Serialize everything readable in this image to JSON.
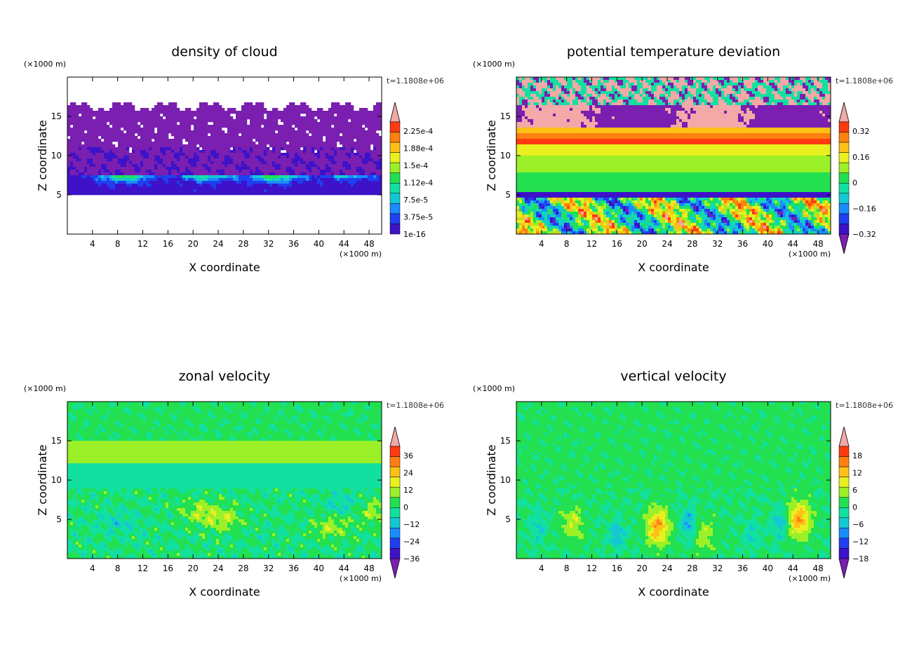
{
  "chart_data": [
    {
      "type": "heatmap",
      "title": "density of cloud",
      "xlabel": "X coordinate",
      "ylabel": "Z coordinate",
      "x_unit": "(×1000 m)",
      "y_unit": "(×1000 m)",
      "time_label": "t=1.1808e+06",
      "xlim": [
        0,
        50
      ],
      "ylim": [
        0,
        20
      ],
      "xticks": [
        4,
        8,
        12,
        16,
        20,
        24,
        28,
        32,
        36,
        40,
        44,
        48
      ],
      "yticks": [
        5,
        10,
        15
      ],
      "colorbar": {
        "labels": [
          "2.25e-4",
          "1.88e-4",
          "1.5e-4",
          "1.12e-4",
          "7.5e-5",
          "3.75e-5",
          "1e-16"
        ],
        "arrow_top": true,
        "arrow_bottom": false
      },
      "field": "cloud"
    },
    {
      "type": "heatmap",
      "title": "potential temperature deviation",
      "xlabel": "X coordinate",
      "ylabel": "Z coordinate",
      "x_unit": "(×1000 m)",
      "y_unit": "(×1000 m)",
      "time_label": "t=1.1808e+06",
      "xlim": [
        0,
        50
      ],
      "ylim": [
        0,
        20
      ],
      "xticks": [
        4,
        8,
        12,
        16,
        20,
        24,
        28,
        32,
        36,
        40,
        44,
        48
      ],
      "yticks": [
        5,
        10,
        15
      ],
      "colorbar": {
        "labels": [
          "0.32",
          "0.16",
          "0",
          "−0.16",
          "−0.32"
        ],
        "arrow_top": true,
        "arrow_bottom": true
      },
      "field": "theta"
    },
    {
      "type": "heatmap",
      "title": "zonal velocity",
      "xlabel": "X coordinate",
      "ylabel": "Z coordinate",
      "x_unit": "(×1000 m)",
      "y_unit": "(×1000 m)",
      "time_label": "t=1.1808e+06",
      "xlim": [
        0,
        50
      ],
      "ylim": [
        0,
        20
      ],
      "xticks": [
        4,
        8,
        12,
        16,
        20,
        24,
        28,
        32,
        36,
        40,
        44,
        48
      ],
      "yticks": [
        5,
        10,
        15
      ],
      "colorbar": {
        "labels": [
          "36",
          "24",
          "12",
          "0",
          "−12",
          "−24",
          "−36"
        ],
        "arrow_top": true,
        "arrow_bottom": true
      },
      "field": "zonal"
    },
    {
      "type": "heatmap",
      "title": "vertical velocity",
      "xlabel": "X coordinate",
      "ylabel": "Z coordinate",
      "x_unit": "(×1000 m)",
      "y_unit": "(×1000 m)",
      "time_label": "t=1.1808e+06",
      "xlim": [
        0,
        50
      ],
      "ylim": [
        0,
        20
      ],
      "xticks": [
        4,
        8,
        12,
        16,
        20,
        24,
        28,
        32,
        36,
        40,
        44,
        48
      ],
      "yticks": [
        5,
        10,
        15
      ],
      "colorbar": {
        "labels": [
          "18",
          "12",
          "6",
          "0",
          "−6",
          "−12",
          "−18"
        ],
        "arrow_top": true,
        "arrow_bottom": true
      },
      "field": "vertical"
    }
  ],
  "palette": [
    "#7a1fb0",
    "#3d12c8",
    "#1f3ff0",
    "#1a8cff",
    "#14c8d2",
    "#12e0a0",
    "#22e050",
    "#9cf028",
    "#e8f020",
    "#ffc018",
    "#ff8010",
    "#ff3a10",
    "#f4a8a8"
  ]
}
